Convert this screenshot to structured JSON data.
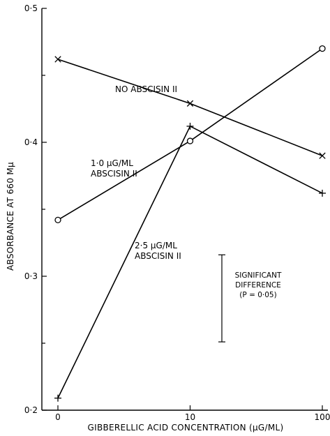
{
  "chart_data": {
    "type": "line",
    "xlabel": "GIBBERELLIC ACID CONCENTRATION  (µG/ML)",
    "ylabel": "ABSORBANCE AT 660 Mµ",
    "x_scale": "log",
    "x_ticks": [
      1,
      10,
      100
    ],
    "x_tick_labels": [
      "0",
      "10",
      "100"
    ],
    "ylim": [
      0.2,
      0.5
    ],
    "y_ticks": [
      0.2,
      0.25,
      0.3,
      0.35,
      0.4,
      0.45,
      0.5
    ],
    "y_tick_labels": [
      "0·2",
      "",
      "0·3",
      "",
      "0·4",
      "",
      "0·5"
    ],
    "grid": false,
    "series": [
      {
        "name_lines": [
          "NO ABSCISIN II"
        ],
        "marker": "x",
        "x": [
          1,
          10,
          100
        ],
        "values": [
          0.462,
          0.429,
          0.39
        ]
      },
      {
        "name_lines": [
          "1·0  µG/ML",
          "ABSCISIN II"
        ],
        "marker": "o",
        "x": [
          1,
          10,
          100
        ],
        "values": [
          0.342,
          0.401,
          0.47
        ]
      },
      {
        "name_lines": [
          "2·5  µG/ML",
          "ABSCISIN II"
        ],
        "marker": "+",
        "x": [
          1,
          10,
          100
        ],
        "values": [
          0.209,
          0.412,
          0.362
        ]
      }
    ],
    "annotation": {
      "lines": [
        "SIGNIFICANT",
        "DIFFERENCE",
        "(P = 0·05)"
      ],
      "bar_range": [
        0.251,
        0.316
      ]
    }
  }
}
